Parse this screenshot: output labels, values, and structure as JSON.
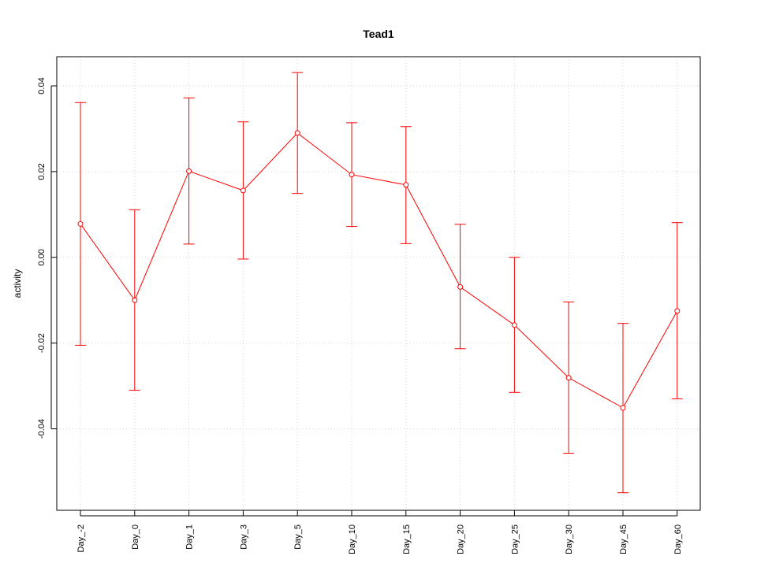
{
  "chart_data": {
    "type": "line",
    "title": "Tead1",
    "xlabel": "",
    "ylabel": "activity",
    "categories": [
      "Day_-2",
      "Day_0",
      "Day_1",
      "Day_3",
      "Day_5",
      "Day_10",
      "Day_15",
      "Day_20",
      "Day_25",
      "Day_30",
      "Day_45",
      "Day_60"
    ],
    "series": [
      {
        "values": [
          0.0078,
          -0.01,
          0.0201,
          0.0156,
          0.029,
          0.0193,
          0.0169,
          -0.0069,
          -0.0158,
          -0.0281,
          -0.0351,
          -0.0125
        ],
        "error_low": [
          -0.0205,
          -0.031,
          0.0031,
          -0.0004,
          0.0149,
          0.0072,
          0.0032,
          -0.0213,
          -0.0315,
          -0.0457,
          -0.0549,
          -0.033
        ],
        "error_high": [
          0.0361,
          0.0111,
          0.0372,
          0.0316,
          0.0431,
          0.0314,
          0.0305,
          0.0077,
          0.0,
          -0.0104,
          -0.0154,
          0.0081
        ]
      }
    ],
    "ylim": [
      -0.059,
      0.0468
    ],
    "yticks": [
      "-0.04",
      "-0.02",
      "0.00",
      "0.02",
      "0.04"
    ],
    "grid": true,
    "colors": {
      "series": "#ff0000",
      "grid": "#d3d3d3",
      "axis": "#000000"
    }
  }
}
